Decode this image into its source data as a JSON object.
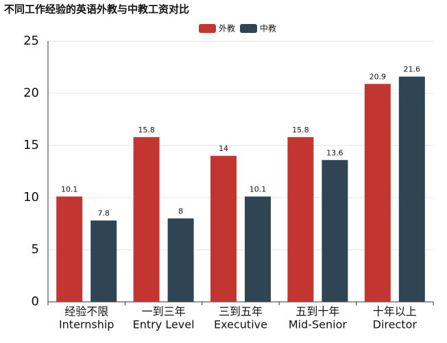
{
  "chart_data": {
    "type": "bar",
    "title": "不同工作经验的英语外教与中教工资对比",
    "categories": [
      [
        "经验不限",
        "Internship"
      ],
      [
        "一到三年",
        "Entry Level"
      ],
      [
        "三到五年",
        "Executive"
      ],
      [
        "五到十年",
        "Mid-Senior"
      ],
      [
        "十年以上",
        "Director"
      ]
    ],
    "series": [
      {
        "name": "外教",
        "color": "#c23531",
        "values": [
          10.1,
          15.8,
          14,
          15.8,
          20.9
        ]
      },
      {
        "name": "中教",
        "color": "#2f4554",
        "values": [
          7.8,
          8,
          10.1,
          13.6,
          21.6
        ]
      }
    ],
    "ylim": [
      0,
      25
    ],
    "yticks": [
      0,
      5,
      10,
      15,
      20,
      25
    ],
    "grid": true
  }
}
